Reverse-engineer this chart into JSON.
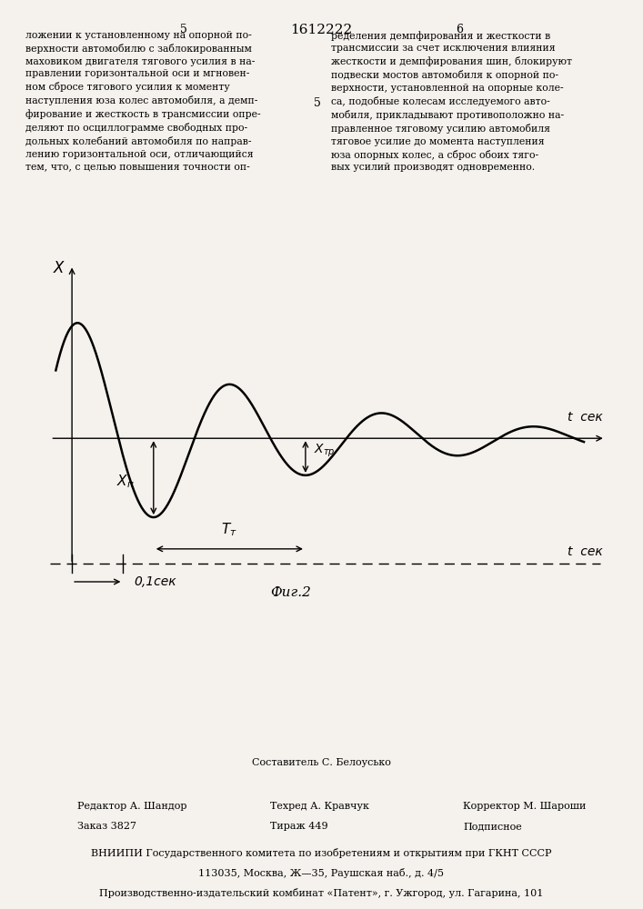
{
  "title": "1612222",
  "fig_label": "Фиг.2",
  "x_label": "X",
  "t_label": "t  сек",
  "annotation_xn": "Xп",
  "annotation_xtr": "Xтр",
  "annotation_Tr": "Tт",
  "annotation_01sec": "0,1сек",
  "text_left": "ложении к установленному на опорной по-\nверхности автомобилю с заблокированным\nмаховиком двигателя тягового усилия в на-\nправлении горизонтальной оси и мгновен-\nном сбросе тягового усилия к моменту\nнаступления юза колес автомобиля, а демп-\nфирование и жесткость в трансмиссии опре-\nделяют по осциллограмме свободных про-\nдольных колебаний автомобиля по направ-\nлению горизонтальной оси, отличающийся\nтем, что, с целью повышения точности оп-",
  "text_right": "ределения демпфирования и жесткости в\nтрансмиссии за счет исключения влияния\nжесткости и демпфирования шин, блокируют\nподвески мостов автомобиля к опорной по-\nверхности, установленной на опорные коле-\nса, подобные колесам исследуемого авто-\nмобиля, прикладывают противоположно на-\nправленное тяговому усилию автомобиля\nтяговое усилие до момента наступления\nюза опорных колес, а сброс обоих тяго-\nвых усилий производят одновременно.",
  "footer_vniipi": "ВНИИПИ Государственного комитета по изобретениям и открытиям при ГКНТ СССР",
  "footer_addr1": "113035, Москва, Ж—35, Раушская наб., д. 4/5",
  "footer_addr2": "Производственно-издательский комбинат «Патент», г. Ужгород, ул. Гагарина, 101",
  "bg_color": "#f5f2ed"
}
